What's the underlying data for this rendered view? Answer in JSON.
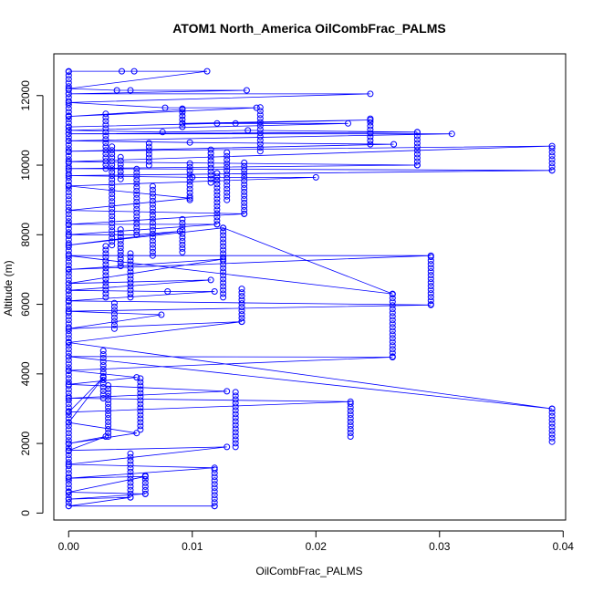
{
  "chart_data": {
    "type": "scatter",
    "title": "ATOM1 North_America OilCombFrac_PALMS",
    "xlabel": "OilCombFrac_PALMS",
    "ylabel": "Altitude (m)",
    "xlim": [
      -0.0012,
      0.0402
    ],
    "ylim": [
      -200,
      13200
    ],
    "x_ticks": [
      0,
      0.01,
      0.02,
      0.03,
      0.04
    ],
    "x_tick_labels": [
      "0.00",
      "0.01",
      "0.02",
      "0.03",
      "0.04"
    ],
    "y_ticks": [
      0,
      2000,
      4000,
      6000,
      8000,
      10000,
      12000
    ],
    "y_tick_labels": [
      "0",
      "2000",
      "4000",
      "6000",
      "8000",
      "10000",
      "12000"
    ],
    "series_color": "#0000ff",
    "point_style": "open-circle",
    "line_style": "connected-in-sequence",
    "profile": [
      {
        "x": 0.0,
        "y": 12700
      },
      {
        "x": 0.0043,
        "y": 12700
      },
      {
        "x": 0.0053,
        "y": 12700
      },
      {
        "x": 0.0112,
        "y": 12700
      },
      {
        "x": 0.0,
        "y": 12200
      },
      {
        "x": 0.0039,
        "y": 12150
      },
      {
        "x": 0.005,
        "y": 12150
      },
      {
        "x": 0.0144,
        "y": 12150
      },
      {
        "x": 0.0,
        "y": 12050
      },
      {
        "x": 0.0244,
        "y": 12050
      },
      {
        "x": 0.0,
        "y": 11800
      },
      {
        "x": 0.0078,
        "y": 11650
      },
      {
        "x": 0.0152,
        "y": 11650
      },
      {
        "x": 0.0,
        "y": 11400
      },
      {
        "x": 0.0092,
        "y": 11600
      },
      {
        "x": 0.0092,
        "y": 11200
      },
      {
        "x": 0.0244,
        "y": 11300
      },
      {
        "x": 0.0,
        "y": 11100
      },
      {
        "x": 0.012,
        "y": 11200
      },
      {
        "x": 0.0135,
        "y": 11200
      },
      {
        "x": 0.0226,
        "y": 11200
      },
      {
        "x": 0.0,
        "y": 11000
      },
      {
        "x": 0.0076,
        "y": 10950
      },
      {
        "x": 0.0145,
        "y": 11000
      },
      {
        "x": 0.0282,
        "y": 10950
      },
      {
        "x": 0.0,
        "y": 10900
      },
      {
        "x": 0.031,
        "y": 10900
      },
      {
        "x": 0.0,
        "y": 10700
      },
      {
        "x": 0.0098,
        "y": 10650
      },
      {
        "x": 0.0263,
        "y": 10600
      },
      {
        "x": 0.0,
        "y": 10400
      },
      {
        "x": 0.0391,
        "y": 10550
      },
      {
        "x": 0.0,
        "y": 10100
      },
      {
        "x": 0.0282,
        "y": 10000
      },
      {
        "x": 0.0,
        "y": 9900
      },
      {
        "x": 0.0391,
        "y": 9850
      },
      {
        "x": 0.0,
        "y": 9700
      },
      {
        "x": 0.01,
        "y": 9650
      },
      {
        "x": 0.02,
        "y": 9650
      },
      {
        "x": 0.0,
        "y": 9400
      },
      {
        "x": 0.0098,
        "y": 9050
      },
      {
        "x": 0.0,
        "y": 8700
      },
      {
        "x": 0.0142,
        "y": 8600
      },
      {
        "x": 0.0,
        "y": 8300
      },
      {
        "x": 0.012,
        "y": 8300
      },
      {
        "x": 0.0,
        "y": 8000
      },
      {
        "x": 0.0055,
        "y": 8000
      },
      {
        "x": 0.009,
        "y": 8100
      },
      {
        "x": 0.0,
        "y": 7700
      },
      {
        "x": 0.0125,
        "y": 8200
      },
      {
        "x": 0.0262,
        "y": 6300
      },
      {
        "x": 0.0,
        "y": 7400
      },
      {
        "x": 0.0293,
        "y": 7400
      },
      {
        "x": 0.0,
        "y": 7000
      },
      {
        "x": 0.0125,
        "y": 7300
      },
      {
        "x": 0.0,
        "y": 6600
      },
      {
        "x": 0.0115,
        "y": 6700
      },
      {
        "x": 0.0,
        "y": 6400
      },
      {
        "x": 0.008,
        "y": 6370
      },
      {
        "x": 0.0118,
        "y": 6370
      },
      {
        "x": 0.0,
        "y": 6100
      },
      {
        "x": 0.0293,
        "y": 5980
      },
      {
        "x": 0.0,
        "y": 5800
      },
      {
        "x": 0.0075,
        "y": 5700
      },
      {
        "x": 0.0,
        "y": 5300
      },
      {
        "x": 0.014,
        "y": 5500
      },
      {
        "x": 0.0,
        "y": 4900
      },
      {
        "x": 0.0391,
        "y": 3000
      },
      {
        "x": 0.0,
        "y": 4500
      },
      {
        "x": 0.0262,
        "y": 4480
      },
      {
        "x": 0.0,
        "y": 4100
      },
      {
        "x": 0.0055,
        "y": 3900
      },
      {
        "x": 0.0,
        "y": 3700
      },
      {
        "x": 0.0128,
        "y": 3500
      },
      {
        "x": 0.0,
        "y": 3300
      },
      {
        "x": 0.0228,
        "y": 3200
      },
      {
        "x": 0.0,
        "y": 2900
      },
      {
        "x": 0.0028,
        "y": 3900
      },
      {
        "x": 0.0,
        "y": 2600
      },
      {
        "x": 0.0055,
        "y": 2300
      },
      {
        "x": 0.0,
        "y": 2000
      },
      {
        "x": 0.003,
        "y": 2200
      },
      {
        "x": 0.0,
        "y": 1800
      },
      {
        "x": 0.0128,
        "y": 1900
      },
      {
        "x": 0.0,
        "y": 1400
      },
      {
        "x": 0.0118,
        "y": 1300
      },
      {
        "x": 0.0,
        "y": 1000
      },
      {
        "x": 0.0062,
        "y": 1050
      },
      {
        "x": 0.0,
        "y": 600
      },
      {
        "x": 0.0062,
        "y": 550
      },
      {
        "x": 0.0,
        "y": 400
      },
      {
        "x": 0.005,
        "y": 450
      },
      {
        "x": 0.0,
        "y": 200
      },
      {
        "x": 0.0118,
        "y": 200
      }
    ],
    "clusters": [
      {
        "x": 0.0,
        "y_min": 200,
        "y_max": 12700
      },
      {
        "x": 0.003,
        "y_min": 6200,
        "y_max": 7700
      },
      {
        "x": 0.003,
        "y_min": 9900,
        "y_max": 11500
      },
      {
        "x": 0.0028,
        "y_min": 3300,
        "y_max": 4700
      },
      {
        "x": 0.0032,
        "y_min": 2200,
        "y_max": 3700
      },
      {
        "x": 0.0035,
        "y_min": 7700,
        "y_max": 10600
      },
      {
        "x": 0.0042,
        "y_min": 7100,
        "y_max": 8200
      },
      {
        "x": 0.0037,
        "y_min": 5300,
        "y_max": 6100
      },
      {
        "x": 0.0042,
        "y_min": 9600,
        "y_max": 10300
      },
      {
        "x": 0.005,
        "y_min": 6200,
        "y_max": 7500
      },
      {
        "x": 0.0055,
        "y_min": 8000,
        "y_max": 9900
      },
      {
        "x": 0.0058,
        "y_min": 2400,
        "y_max": 3900
      },
      {
        "x": 0.005,
        "y_min": 450,
        "y_max": 1800
      },
      {
        "x": 0.0062,
        "y_min": 550,
        "y_max": 1100
      },
      {
        "x": 0.0065,
        "y_min": 10000,
        "y_max": 10700
      },
      {
        "x": 0.0068,
        "y_min": 7400,
        "y_max": 9400
      },
      {
        "x": 0.0092,
        "y_min": 7500,
        "y_max": 8500
      },
      {
        "x": 0.0092,
        "y_min": 11100,
        "y_max": 11700
      },
      {
        "x": 0.0098,
        "y_min": 9000,
        "y_max": 10100
      },
      {
        "x": 0.0115,
        "y_min": 9500,
        "y_max": 10500
      },
      {
        "x": 0.012,
        "y_min": 8300,
        "y_max": 9800
      },
      {
        "x": 0.0125,
        "y_min": 6200,
        "y_max": 8200
      },
      {
        "x": 0.0128,
        "y_min": 9000,
        "y_max": 10400
      },
      {
        "x": 0.014,
        "y_min": 5500,
        "y_max": 6500
      },
      {
        "x": 0.0142,
        "y_min": 8600,
        "y_max": 10100
      },
      {
        "x": 0.0135,
        "y_min": 1900,
        "y_max": 3500
      },
      {
        "x": 0.0118,
        "y_min": 200,
        "y_max": 1300
      },
      {
        "x": 0.0155,
        "y_min": 10400,
        "y_max": 11700
      },
      {
        "x": 0.0228,
        "y_min": 2200,
        "y_max": 3200
      },
      {
        "x": 0.0244,
        "y_min": 10600,
        "y_max": 11400
      },
      {
        "x": 0.0262,
        "y_min": 4500,
        "y_max": 6300
      },
      {
        "x": 0.0282,
        "y_min": 10000,
        "y_max": 10950
      },
      {
        "x": 0.0293,
        "y_min": 6000,
        "y_max": 7400
      },
      {
        "x": 0.0391,
        "y_min": 9850,
        "y_max": 10550
      },
      {
        "x": 0.0391,
        "y_min": 2050,
        "y_max": 3000
      }
    ]
  }
}
